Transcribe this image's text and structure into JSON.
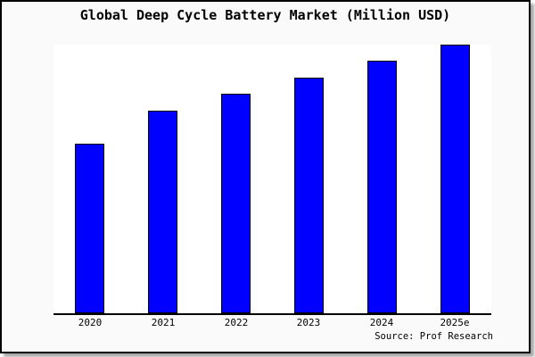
{
  "chart_data": {
    "type": "bar",
    "title": "Global Deep Cycle Battery Market (Million USD)",
    "categories": [
      "2020",
      "2021",
      "2022",
      "2023",
      "2024",
      "2025e"
    ],
    "values": [
      63.1,
      75.4,
      81.7,
      87.8,
      93.9,
      100
    ],
    "note": "y-axis has no tick labels; values are relative bar heights with 2025e = 100",
    "xlabel": "",
    "ylabel": "",
    "ylim": [
      0,
      100
    ],
    "grid": false,
    "legend": false,
    "bar_color": "#0000ff",
    "bar_edge_color": "#000000",
    "plot_background": "#ffffff",
    "page_background": "#fafafa",
    "axis_color": "#000000"
  },
  "source": {
    "label": "Source: Prof Research"
  }
}
